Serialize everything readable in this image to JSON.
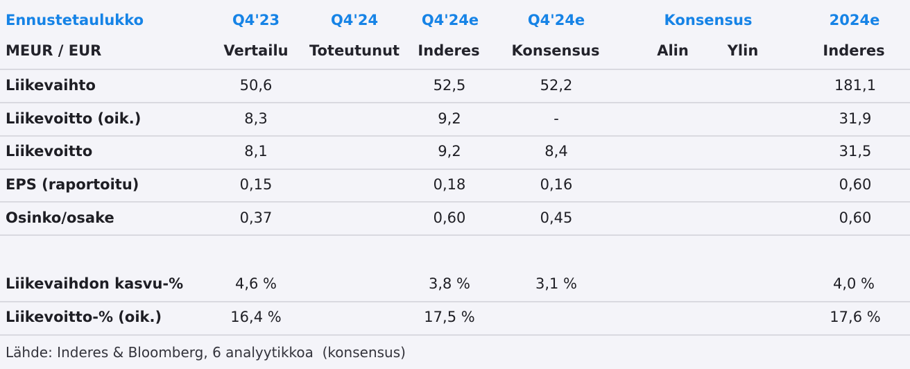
{
  "header": {
    "title": "Ennustetaulukko",
    "unit": "MEUR / EUR",
    "columns": [
      {
        "top": "Q4'23",
        "sub": "Vertailu"
      },
      {
        "top": "Q4'24",
        "sub": "Toteutunut"
      },
      {
        "top": "Q4'24e",
        "sub": "Inderes"
      },
      {
        "top": "Q4'24e",
        "sub": "Konsensus"
      },
      {
        "top": "Konsensus",
        "sub": ""
      },
      {
        "top": "",
        "sub": "Alin"
      },
      {
        "top": "",
        "sub": "Ylin"
      },
      {
        "top": "2024e",
        "sub": "Inderes"
      }
    ]
  },
  "rows": [
    {
      "label": "Liikevaihto",
      "values": [
        "50,6",
        "",
        "52,5",
        "52,2",
        "",
        "",
        "181,1"
      ]
    },
    {
      "label": "Liikevoitto (oik.)",
      "values": [
        "8,3",
        "",
        "9,2",
        "-",
        "",
        "",
        "31,9"
      ]
    },
    {
      "label": "Liikevoitto",
      "values": [
        "8,1",
        "",
        "9,2",
        "8,4",
        "",
        "",
        "31,5"
      ]
    },
    {
      "label": "EPS (raportoitu)",
      "values": [
        "0,15",
        "",
        "0,18",
        "0,16",
        "",
        "",
        "0,60"
      ]
    },
    {
      "label": "Osinko/osake",
      "values": [
        "0,37",
        "",
        "0,60",
        "0,45",
        "",
        "",
        "0,60"
      ]
    },
    {
      "label": "Liikevaihdon kasvu-%",
      "values": [
        "4,6 %",
        "",
        "3,8 %",
        "3,1 %",
        "",
        "",
        "4,0 %"
      ]
    },
    {
      "label": "Liikevoitto-% (oik.)",
      "values": [
        "16,4 %",
        "",
        "17,5 %",
        "",
        "",
        "",
        "17,6 %"
      ]
    }
  ],
  "source": "Lähde: Inderes & Bloomberg, 6 analyytikkoa  (konsensus)"
}
